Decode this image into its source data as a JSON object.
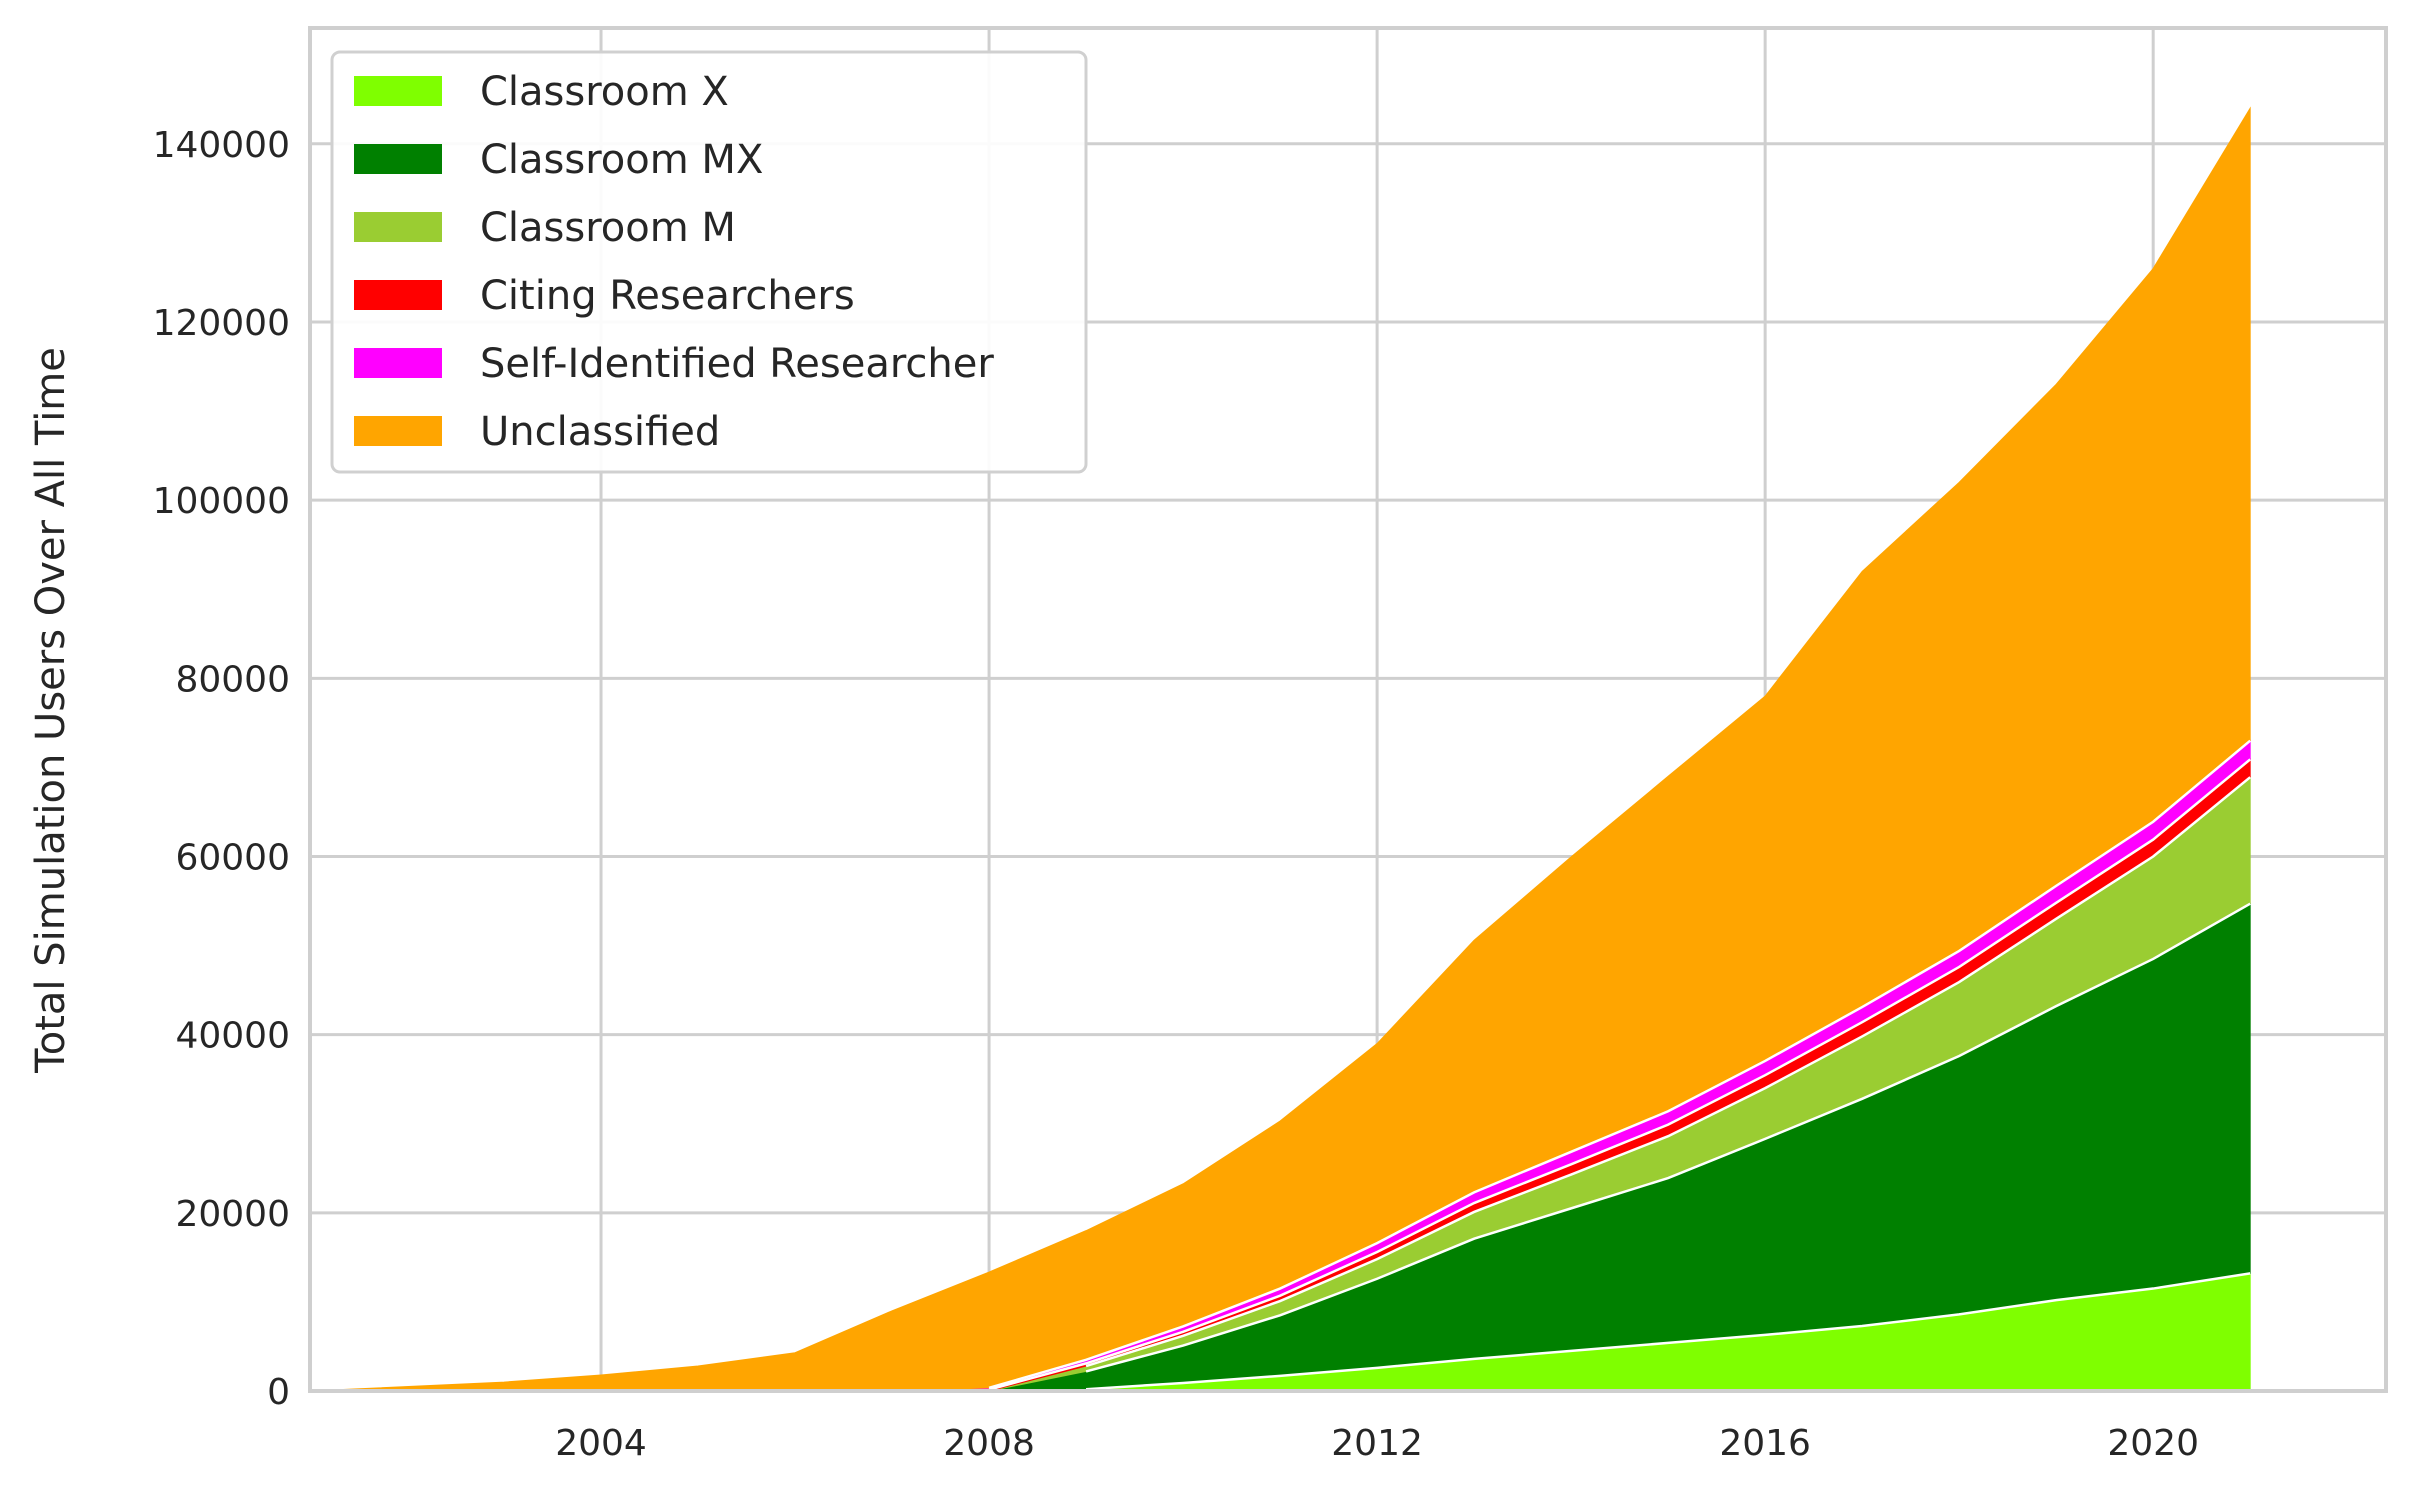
{
  "chart_data": {
    "type": "area",
    "stacked": true,
    "title": "",
    "xlabel": "",
    "ylabel": "Total Simulation Users Over All Time",
    "xlim": [
      2001.0,
      2022.4
    ],
    "ylim": [
      0,
      153000
    ],
    "xticks": [
      2004,
      2008,
      2012,
      2016,
      2020
    ],
    "yticks": [
      0,
      20000,
      40000,
      60000,
      80000,
      100000,
      120000,
      140000
    ],
    "grid": true,
    "legend": "top-left",
    "x": [
      2001.0,
      2003.0,
      2004.0,
      2005.0,
      2006.0,
      2007.0,
      2008.0,
      2009.0,
      2010.0,
      2011.0,
      2012.0,
      2013.0,
      2014.0,
      2015.0,
      2016.0,
      2017.0,
      2018.0,
      2019.0,
      2020.0,
      2021.0
    ],
    "series": [
      {
        "name": "Classroom X",
        "color": "#7fff00",
        "values": [
          0,
          0,
          0,
          0,
          0,
          0,
          0,
          200,
          900,
          1700,
          2600,
          3600,
          4500,
          5400,
          6300,
          7300,
          8600,
          10200,
          11500,
          13200
        ]
      },
      {
        "name": "Classroom MX",
        "color": "#008000",
        "values": [
          0,
          0,
          0,
          0,
          0,
          0,
          0,
          2000,
          4200,
          6800,
          10000,
          13500,
          16000,
          18500,
          22000,
          25500,
          29000,
          33000,
          37000,
          41500
        ]
      },
      {
        "name": "Classroom M",
        "color": "#9acd32",
        "values": [
          0,
          0,
          0,
          0,
          0,
          0,
          0,
          600,
          1100,
          1600,
          2200,
          3000,
          3800,
          4700,
          5700,
          7000,
          8300,
          9800,
          11500,
          14200
        ]
      },
      {
        "name": "Citing Researchers",
        "color": "#ff0000",
        "values": [
          0,
          0,
          0,
          0,
          0,
          0,
          150,
          300,
          450,
          600,
          800,
          1000,
          1150,
          1300,
          1450,
          1600,
          1700,
          1800,
          1900,
          2000
        ]
      },
      {
        "name": "Self-Identified Researcher",
        "color": "#ff00ff",
        "values": [
          0,
          0,
          0,
          0,
          0,
          0,
          200,
          400,
          600,
          800,
          1000,
          1200,
          1400,
          1500,
          1600,
          1700,
          1800,
          1900,
          2000,
          2100
        ]
      },
      {
        "name": "Unclassified",
        "color": "#ffa500",
        "values": [
          0,
          1000,
          1800,
          2800,
          4300,
          9000,
          13000,
          14500,
          16000,
          18800,
          22400,
          28300,
          33100,
          37600,
          40950,
          48900,
          52600,
          56300,
          62100,
          71000
        ]
      }
    ]
  }
}
